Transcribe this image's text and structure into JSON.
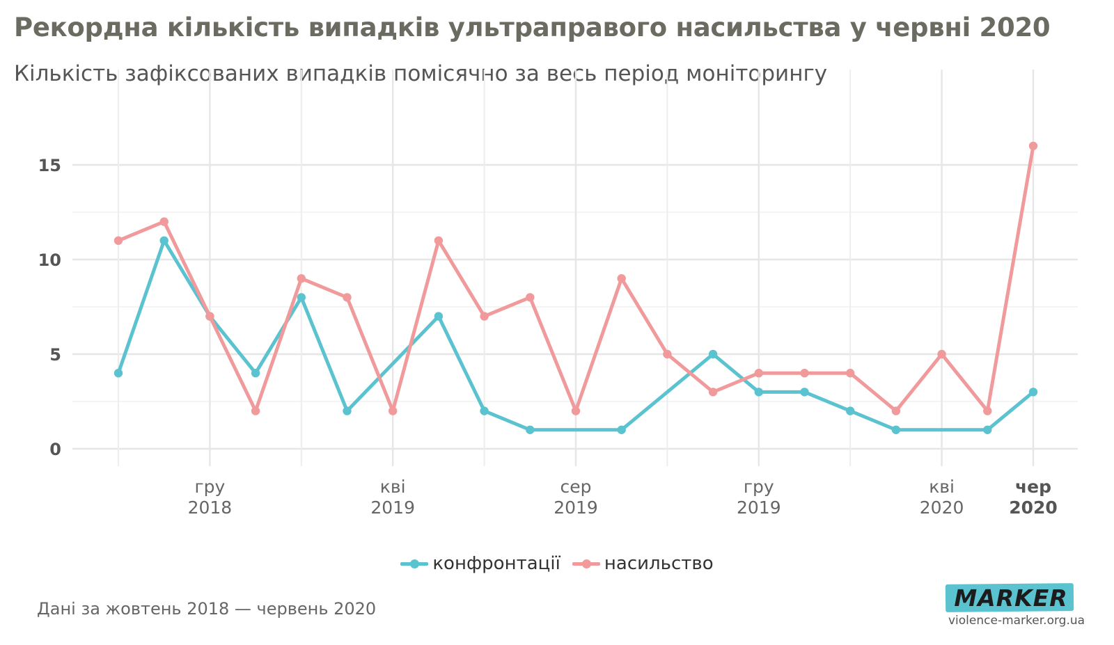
{
  "header": {
    "title": "Рекордна кількість випадків ультраправого насильства у червні 2020",
    "subtitle": "Кількість зафіксованих випадків помісячно за весь період моніторингу"
  },
  "footer": {
    "note": "Дані за жовтень 2018 — червень 2020",
    "logo_text": "MARKER",
    "logo_url": "violence-marker.org.ua"
  },
  "colors": {
    "confrontations": "#5bc2cf",
    "violence": "#f09a9b",
    "grid": "#e6e6e6"
  },
  "chart_data": {
    "type": "line",
    "title": "Рекордна кількість випадків ультраправого насильства у червні 2020",
    "subtitle": "Кількість зафіксованих випадків помісячно за весь період моніторингу",
    "xlabel": "",
    "ylabel": "",
    "x": [
      "2018-10",
      "2018-11",
      "2018-12",
      "2019-01",
      "2019-02",
      "2019-03",
      "2019-04",
      "2019-05",
      "2019-06",
      "2019-07",
      "2019-08",
      "2019-09",
      "2019-10",
      "2019-11",
      "2019-12",
      "2020-01",
      "2020-02",
      "2020-03",
      "2020-04",
      "2020-05",
      "2020-06"
    ],
    "x_ticks": [
      {
        "x": "2018-12",
        "line1": "гру",
        "line2": "2018",
        "bold": false
      },
      {
        "x": "2019-04",
        "line1": "кві",
        "line2": "2019",
        "bold": false
      },
      {
        "x": "2019-08",
        "line1": "сер",
        "line2": "2019",
        "bold": false
      },
      {
        "x": "2019-12",
        "line1": "гру",
        "line2": "2019",
        "bold": false
      },
      {
        "x": "2020-04",
        "line1": "кві",
        "line2": "2020",
        "bold": false
      },
      {
        "x": "2020-06",
        "line1": "чер",
        "line2": "2020",
        "bold": true
      }
    ],
    "y_ticks": [
      0,
      5,
      10,
      15
    ],
    "ylim": [
      0,
      17
    ],
    "grid": true,
    "legend_position": "bottom",
    "series": [
      {
        "name": "конфронтації",
        "key": "confrontations",
        "values": [
          4,
          11,
          7,
          4,
          8,
          2,
          4.5,
          7,
          2,
          1,
          1,
          1,
          3,
          5,
          3,
          3,
          2,
          1,
          1,
          1,
          3
        ],
        "marked": [
          true,
          true,
          true,
          true,
          true,
          true,
          false,
          true,
          true,
          true,
          false,
          true,
          false,
          true,
          true,
          true,
          true,
          true,
          false,
          true,
          true
        ]
      },
      {
        "name": "насильство",
        "key": "violence",
        "values": [
          11,
          12,
          7,
          2,
          9,
          8,
          2,
          11,
          7,
          8,
          2,
          9,
          5,
          3,
          4,
          4,
          4,
          2,
          5,
          2,
          16
        ],
        "marked": [
          true,
          true,
          true,
          true,
          true,
          true,
          true,
          true,
          true,
          true,
          true,
          true,
          true,
          true,
          true,
          true,
          true,
          true,
          true,
          true,
          true
        ]
      }
    ]
  }
}
